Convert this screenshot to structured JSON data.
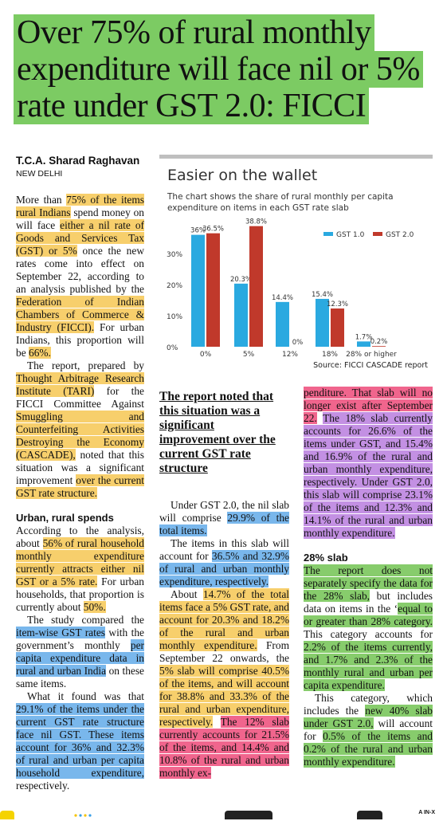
{
  "headline": "Over 75% of rural monthly expenditure will face nil or 5% rate under GST 2.0: FICCI",
  "byline": "T.C.A. Sharad Raghavan",
  "dateline": "NEW DELHI",
  "pull_quote": "The report noted that this situation was a significant improvement over the current GST rate structure",
  "section_heads": {
    "urban_rural": "Urban, rural spends",
    "slab28": "28% slab"
  },
  "colors": {
    "highlight_yellow": "#f7cf6c",
    "highlight_blue": "#79b7ec",
    "highlight_green": "#87cc6c",
    "highlight_pink": "#f0658d",
    "highlight_purple": "#c390e3",
    "gst1": "#2aa9e0",
    "gst2": "#c0392b"
  },
  "chart": {
    "title": "Easier on the wallet",
    "subtitle": "The chart shows the share of rural monthly per capita expenditure on items in each GST rate slab",
    "source": "Source: FICCI CASCADE report"
  },
  "chart_data": {
    "type": "bar",
    "title": "Easier on the wallet",
    "categories": [
      "0%",
      "5%",
      "12%",
      "18%",
      "28% or higher"
    ],
    "series": [
      {
        "name": "GST 1.0",
        "values": [
          36,
          20.3,
          14.4,
          15.4,
          1.7
        ],
        "labels": [
          "36%",
          "20.3%",
          "14.4%",
          "15.4%",
          "1.7%"
        ]
      },
      {
        "name": "GST 2.0",
        "values": [
          36.5,
          38.8,
          0,
          12.3,
          0.2
        ],
        "labels": [
          "36.5%",
          "38.8%",
          "0%",
          "12.3%",
          "0.2%"
        ]
      }
    ],
    "yticks": [
      "0%",
      "10%",
      "20%",
      "30%"
    ],
    "ylim": [
      0,
      40
    ],
    "grid": false,
    "legend": "top-right"
  },
  "col1": {
    "p1": [
      "More than ",
      "75% of the items rural Indians",
      " spend money on will face ",
      "either a nil rate of Goods and Services Tax (GST) or 5%",
      " once the new rates come into effect on September 22, according to an analysis published by the ",
      "Federation of Indian Chambers of Commerce & Industry (FICCI).",
      " For urban Indians, this proportion will be ",
      "66%."
    ],
    "p2": [
      "The report, prepared by ",
      "Thought Arbitrage Research Institute (TARI)",
      " for the FICCI Committee Against ",
      "Smuggling and Counterfeiting Activities Destroying the Economy (CASCADE),",
      " noted that this situation was a significant improvement ",
      "over the current GST rate structure."
    ],
    "p3": [
      "According to the analysis, about ",
      "56% of rural household monthly expenditure currently attracts either nil GST or a 5% rate.",
      " For urban households, that proportion is currently about ",
      "50%."
    ],
    "p4": [
      "The study compared the ",
      "item-wise GST rates",
      " with the government’s monthly ",
      "per capita expenditure data in rural and urban India",
      " on these same items."
    ],
    "p5": [
      "What it found was that ",
      "29.1% of the items under the current GST rate structure face nil GST. These items account for 36% and 32.3% of rural and urban per capita household expenditure,",
      " respectively."
    ]
  },
  "col2": {
    "p1": [
      "Under GST 2.0, the nil slab will comprise ",
      "29.9% of the total items."
    ],
    "p2": [
      "The items in this slab will account for ",
      "36.5% and 32.9% of rural and urban monthly expenditure, respectively."
    ],
    "p3": [
      "About ",
      "14.7% of the total items face a 5% GST rate, and account for 20.3% and 18.2% of the rural and urban monthly expenditure.",
      " From September 22 onwards, the ",
      "5% slab will comprise 40.5% of the items, and will account for 38.8% and 33.3% of the rural and urban expenditure, respectively.",
      " ",
      "The 12% slab currently accounts for 21.5% of the items, and 14.4% and 10.8% of the rural and urban monthly ex-"
    ]
  },
  "col3": {
    "p1": [
      "penditure. That slab will no longer exist after September 22.",
      " ",
      "The 18% slab currently accounts for 26.6% of the items under GST, and 15.4% and 16.9% of the rural and urban monthly expenditure, respectively. Under GST 2.0, this slab will comprise 23.1% of the items and 12.3% and 14.1% of the rural and urban monthly expenditure."
    ],
    "p2": [
      "The report does not separately specify the data for the 28% slab,",
      " but includes data on items in the ‘",
      "equal to or greater than 28% category.",
      " This category accounts for ",
      "2.2% of the items currently, and 1.7% and 2.3% of the monthly rural and urban per capita expenditure."
    ],
    "p3": [
      "This category, which includes the ",
      "new 40% slab under GST 2.0,",
      " will account for ",
      "0.5% of the items and 0.2% of the rural and urban monthly expenditure."
    ]
  },
  "footer": {
    "brand": "A IN-X"
  }
}
